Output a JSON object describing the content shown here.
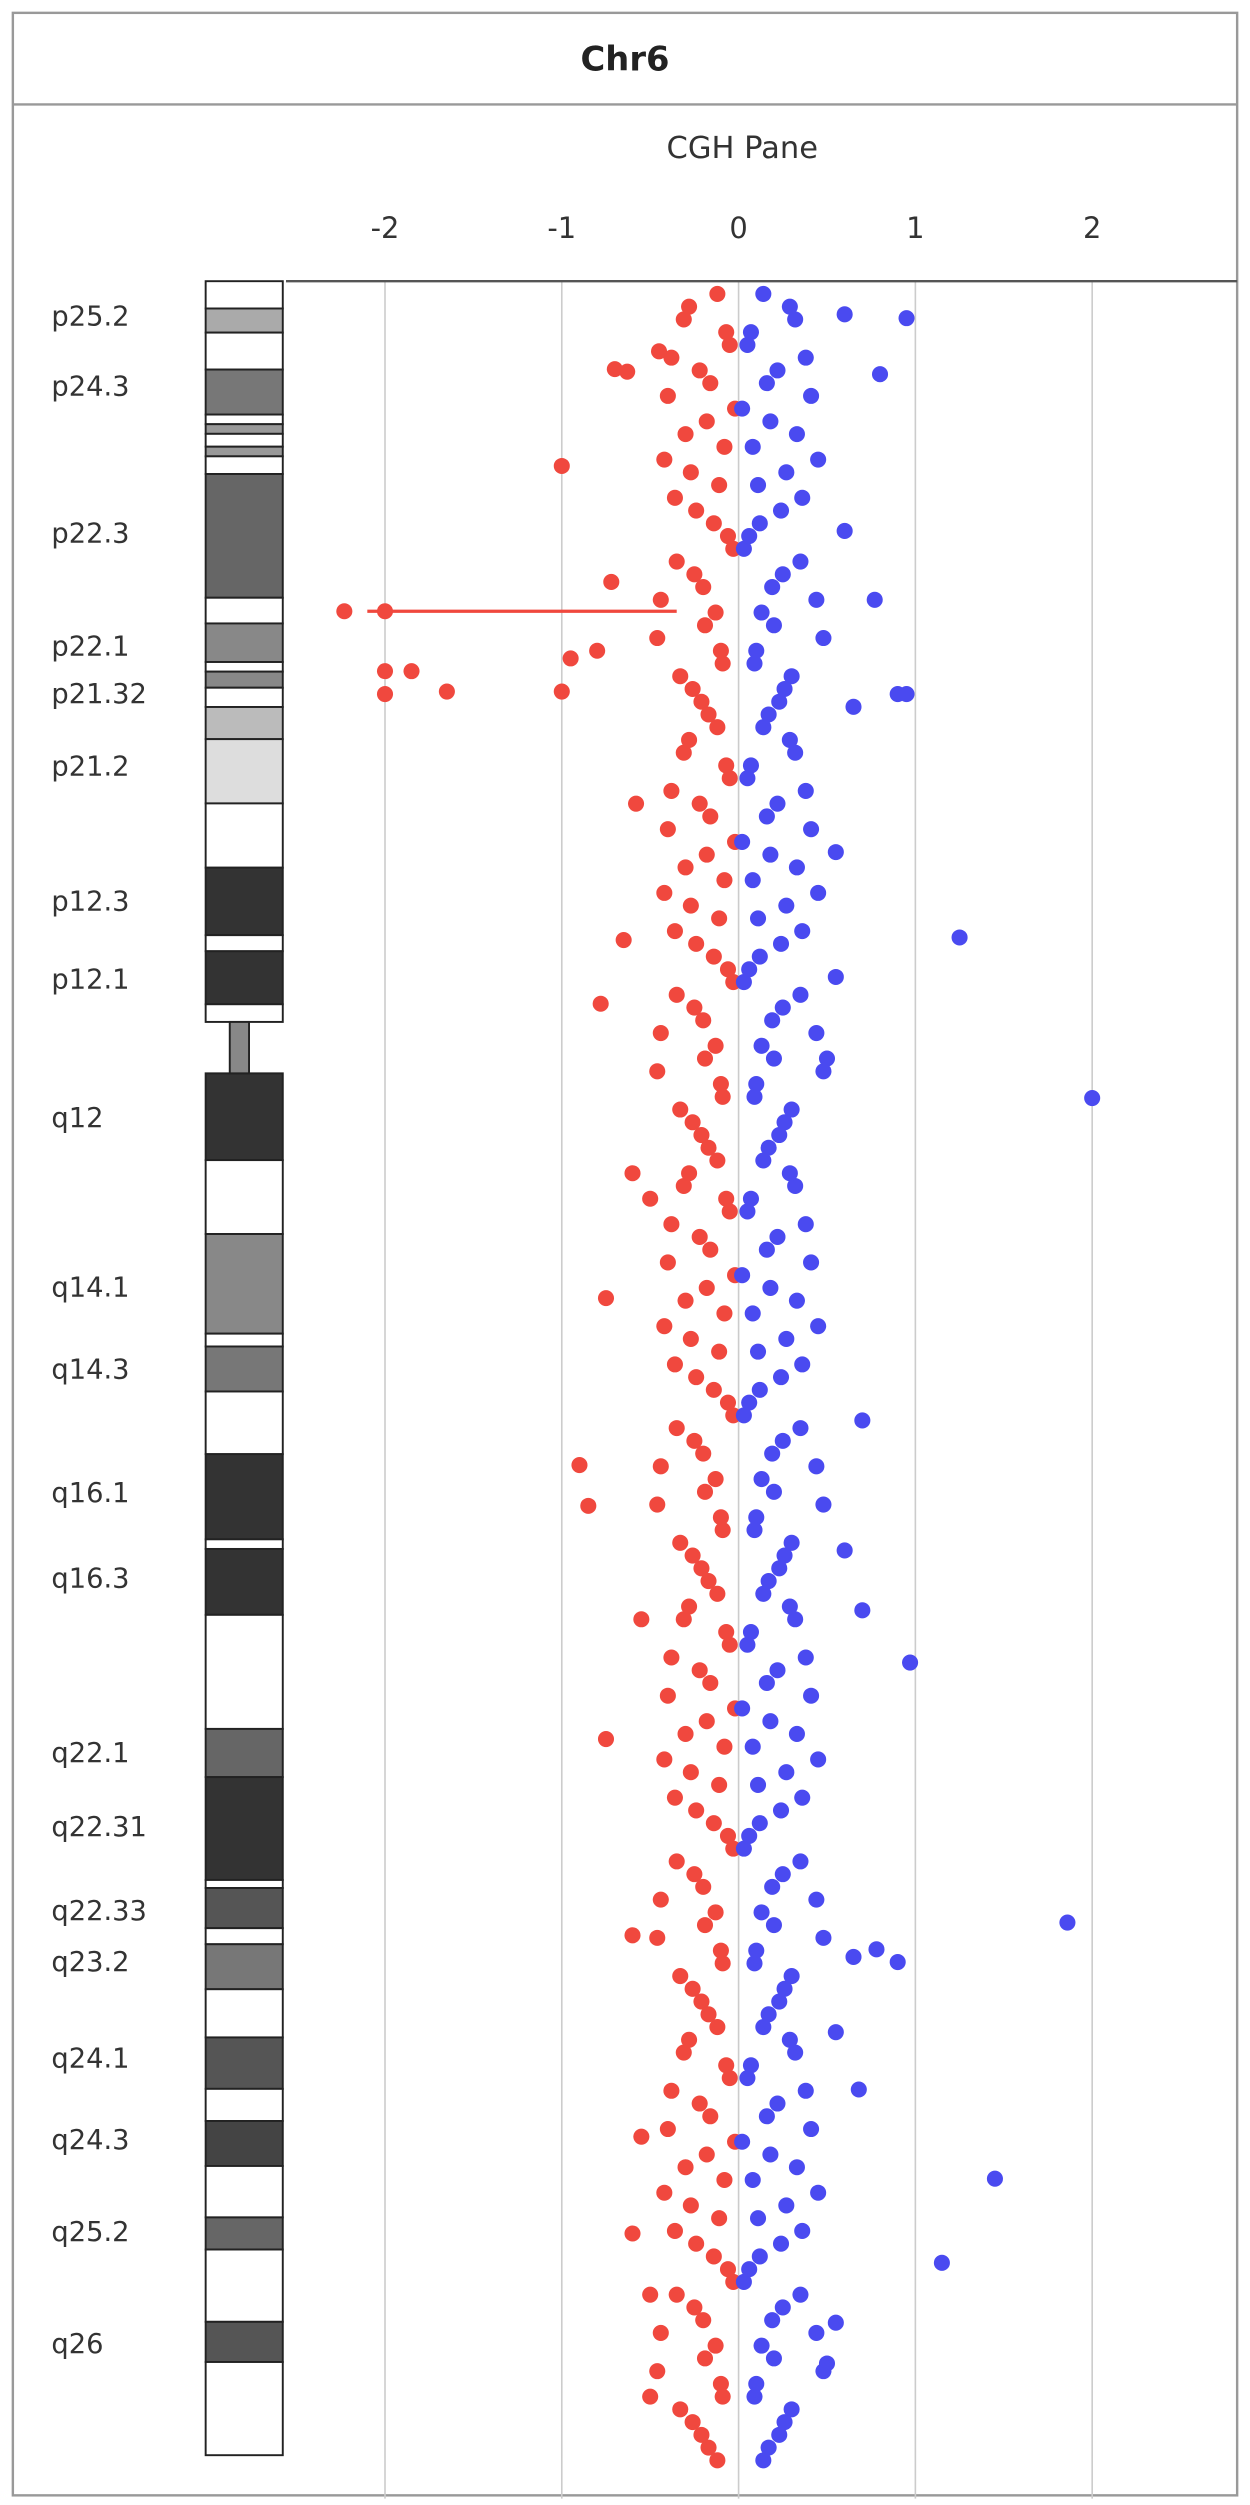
{
  "chart_data": {
    "type": "scatter",
    "title": "Chr6",
    "subtitle": "CGH Pane",
    "xlim": [
      -2.56,
      2.82
    ],
    "xticks": [
      -2,
      -1,
      0,
      1,
      2
    ],
    "ylim": [
      0,
      174
    ],
    "grid": true,
    "bands": {
      "labels": [
        "p25.2",
        "p24.3",
        "p22.3",
        "p22.1",
        "p21.32",
        "p21.2",
        "p12.3",
        "p12.1",
        "q12",
        "q14.1",
        "q14.3",
        "q16.1",
        "q16.3",
        "q22.1",
        "q22.31",
        "q22.33",
        "q23.2",
        "q24.1",
        "q24.3",
        "q25.2",
        "q26"
      ],
      "positions": [
        2.9,
        8.4,
        19.9,
        28.8,
        32.5,
        38.2,
        48.8,
        54.9,
        65.8,
        79.1,
        85.5,
        95.2,
        101.9,
        115.6,
        121.4,
        128.0,
        132.0,
        139.6,
        146.0,
        153.2,
        162.0
      ]
    },
    "segments": [
      {
        "position": 25.9,
        "from": -2.1,
        "to": -0.35,
        "color": "#f0483e"
      }
    ],
    "series": [
      {
        "color": "#f0483e",
        "positions": [
          1,
          3,
          5,
          7,
          9,
          11,
          13,
          15,
          17,
          19,
          21,
          23,
          25,
          27,
          29,
          31,
          33,
          35,
          37,
          39,
          41,
          43,
          45,
          47,
          49,
          51,
          53,
          55,
          57,
          59,
          61,
          63,
          65,
          67,
          69,
          71,
          73,
          75,
          77,
          79,
          81,
          83,
          85,
          87,
          89,
          91,
          93,
          95,
          97,
          99,
          101,
          103,
          105,
          107,
          109,
          111,
          113,
          115,
          117,
          119,
          121,
          123,
          125,
          127,
          129,
          131,
          133,
          135,
          137,
          139,
          141,
          143,
          145,
          147,
          149,
          151,
          153,
          155,
          157,
          159,
          161,
          163,
          165,
          167,
          169,
          171,
          2,
          4,
          6,
          8,
          10,
          12,
          14,
          16,
          18,
          20,
          22,
          24,
          26,
          28,
          30,
          32,
          34,
          36,
          38,
          40,
          42,
          44,
          46,
          48,
          50,
          52,
          54,
          56,
          58,
          60,
          62,
          64,
          66,
          68,
          70,
          72,
          74,
          76,
          78,
          80,
          82,
          84,
          86,
          88,
          90,
          92,
          94,
          96,
          98,
          100,
          102,
          104,
          106,
          108,
          110,
          112,
          114,
          116,
          118,
          120,
          122,
          124,
          126,
          128,
          130,
          132,
          134,
          136,
          138,
          140,
          142,
          144,
          146,
          148,
          150,
          152,
          154,
          156,
          158,
          160,
          162,
          164,
          166,
          168,
          170,
          25.9,
          25.9,
          14.5,
          6.9,
          7.1,
          23.6,
          30.6,
          32.4,
          30.6,
          32.2,
          32.2,
          29.6,
          29.0,
          51.7,
          56.7,
          79.8,
          92.9,
          96.1,
          114.4,
          129.8,
          153.2,
          145.6,
          158.0,
          5.5,
          41.0,
          70.0,
          72.0,
          105,
          166
        ],
        "values": [
          -0.12,
          -0.31,
          -0.05,
          -0.22,
          -0.4,
          -0.18,
          -0.08,
          -0.27,
          -0.36,
          -0.14,
          -0.03,
          -0.25,
          -0.44,
          -0.19,
          -0.1,
          -0.33,
          -0.21,
          -0.12,
          -0.31,
          -0.05,
          -0.22,
          -0.4,
          -0.18,
          -0.08,
          -0.27,
          -0.36,
          -0.14,
          -0.03,
          -0.25,
          -0.44,
          -0.19,
          -0.1,
          -0.33,
          -0.21,
          -0.12,
          -0.31,
          -0.05,
          -0.22,
          -0.4,
          -0.18,
          -0.08,
          -0.27,
          -0.36,
          -0.14,
          -0.03,
          -0.25,
          -0.44,
          -0.19,
          -0.1,
          -0.33,
          -0.21,
          -0.12,
          -0.31,
          -0.05,
          -0.22,
          -0.4,
          -0.18,
          -0.08,
          -0.27,
          -0.36,
          -0.14,
          -0.03,
          -0.25,
          -0.44,
          -0.19,
          -0.1,
          -0.33,
          -0.21,
          -0.12,
          -0.31,
          -0.05,
          -0.22,
          -0.4,
          -0.18,
          -0.08,
          -0.27,
          -0.36,
          -0.14,
          -0.03,
          -0.25,
          -0.44,
          -0.19,
          -0.1,
          -0.33,
          -0.21,
          -0.12,
          -0.28,
          -0.07,
          -0.38,
          -0.16,
          -0.02,
          -0.3,
          -0.42,
          -0.11,
          -0.24,
          -0.06,
          -0.35,
          -0.2,
          -0.13,
          -0.46,
          -0.09,
          -0.26,
          -0.17,
          -0.28,
          -0.07,
          -0.38,
          -0.16,
          -0.02,
          -0.3,
          -0.42,
          -0.11,
          -0.24,
          -0.06,
          -0.35,
          -0.2,
          -0.13,
          -0.46,
          -0.09,
          -0.26,
          -0.17,
          -0.28,
          -0.07,
          -0.38,
          -0.16,
          -0.02,
          -0.3,
          -0.42,
          -0.11,
          -0.24,
          -0.06,
          -0.35,
          -0.2,
          -0.13,
          -0.46,
          -0.09,
          -0.26,
          -0.17,
          -0.28,
          -0.07,
          -0.38,
          -0.16,
          -0.02,
          -0.3,
          -0.42,
          -0.11,
          -0.24,
          -0.06,
          -0.35,
          -0.2,
          -0.13,
          -0.46,
          -0.09,
          -0.26,
          -0.17,
          -0.28,
          -0.07,
          -0.38,
          -0.16,
          -0.02,
          -0.3,
          -0.42,
          -0.11,
          -0.24,
          -0.06,
          -0.35,
          -0.2,
          -0.13,
          -0.46,
          -0.09,
          -0.26,
          -0.17,
          -2.0,
          -2.23,
          -1.0,
          -0.7,
          -0.63,
          -0.72,
          -2.0,
          -2.0,
          -1.85,
          -1.65,
          -1.0,
          -0.95,
          -0.8,
          -0.65,
          -0.78,
          -0.75,
          -0.9,
          -0.85,
          -0.75,
          -0.6,
          -0.6,
          -0.55,
          -0.5,
          -0.45,
          -0.58,
          -0.6,
          -0.5,
          -0.55,
          -0.5
        ]
      },
      {
        "color": "#4a4af0",
        "positions": [
          1,
          3,
          5,
          7,
          9,
          11,
          13,
          15,
          17,
          19,
          21,
          23,
          25,
          27,
          29,
          31,
          33,
          35,
          37,
          39,
          41,
          43,
          45,
          47,
          49,
          51,
          53,
          55,
          57,
          59,
          61,
          63,
          65,
          67,
          69,
          71,
          73,
          75,
          77,
          79,
          81,
          83,
          85,
          87,
          89,
          91,
          93,
          95,
          97,
          99,
          101,
          103,
          105,
          107,
          109,
          111,
          113,
          115,
          117,
          119,
          121,
          123,
          125,
          127,
          129,
          131,
          133,
          135,
          137,
          139,
          141,
          143,
          145,
          147,
          149,
          151,
          153,
          155,
          157,
          159,
          161,
          163,
          165,
          167,
          169,
          171,
          2,
          4,
          6,
          8,
          10,
          12,
          14,
          16,
          18,
          20,
          22,
          24,
          26,
          28,
          30,
          32,
          34,
          36,
          38,
          40,
          42,
          44,
          46,
          48,
          50,
          52,
          54,
          56,
          58,
          60,
          62,
          64,
          66,
          68,
          70,
          72,
          74,
          76,
          78,
          80,
          82,
          84,
          86,
          88,
          90,
          92,
          94,
          96,
          98,
          100,
          102,
          104,
          106,
          108,
          110,
          112,
          114,
          116,
          118,
          120,
          122,
          124,
          126,
          128,
          130,
          132,
          134,
          136,
          138,
          140,
          142,
          144,
          146,
          148,
          150,
          152,
          154,
          156,
          158,
          160,
          162,
          164,
          166,
          168,
          170,
          2.9,
          2.6,
          7.3,
          19.6,
          25.0,
          32.4,
          32.4,
          33.4,
          51.5,
          54.6,
          64.1,
          89.4,
          108.4,
          104.3,
          99.6,
          128.8,
          130.9,
          131.9,
          131.5,
          137.4,
          141.9,
          148.9,
          155.5,
          160.2,
          163.4,
          44.8,
          61.0
        ],
        "values": [
          0.14,
          0.32,
          0.05,
          0.22,
          0.41,
          0.18,
          0.08,
          0.27,
          0.36,
          0.12,
          0.03,
          0.25,
          0.44,
          0.2,
          0.1,
          0.3,
          0.23,
          0.14,
          0.32,
          0.05,
          0.22,
          0.41,
          0.18,
          0.08,
          0.27,
          0.36,
          0.12,
          0.03,
          0.25,
          0.44,
          0.2,
          0.1,
          0.3,
          0.23,
          0.14,
          0.32,
          0.05,
          0.22,
          0.41,
          0.18,
          0.08,
          0.27,
          0.36,
          0.12,
          0.03,
          0.25,
          0.44,
          0.2,
          0.1,
          0.3,
          0.23,
          0.14,
          0.32,
          0.05,
          0.22,
          0.41,
          0.18,
          0.08,
          0.27,
          0.36,
          0.12,
          0.03,
          0.25,
          0.44,
          0.2,
          0.1,
          0.3,
          0.23,
          0.14,
          0.32,
          0.05,
          0.22,
          0.41,
          0.18,
          0.08,
          0.27,
          0.36,
          0.12,
          0.03,
          0.25,
          0.44,
          0.2,
          0.1,
          0.3,
          0.23,
          0.14,
          0.29,
          0.07,
          0.38,
          0.16,
          0.02,
          0.33,
          0.45,
          0.11,
          0.24,
          0.06,
          0.35,
          0.19,
          0.13,
          0.48,
          0.09,
          0.26,
          0.17,
          0.29,
          0.07,
          0.38,
          0.16,
          0.02,
          0.33,
          0.45,
          0.11,
          0.24,
          0.06,
          0.35,
          0.19,
          0.13,
          0.48,
          0.09,
          0.26,
          0.17,
          0.29,
          0.07,
          0.38,
          0.16,
          0.02,
          0.33,
          0.45,
          0.11,
          0.24,
          0.06,
          0.35,
          0.19,
          0.13,
          0.48,
          0.09,
          0.26,
          0.17,
          0.29,
          0.07,
          0.38,
          0.16,
          0.02,
          0.33,
          0.45,
          0.11,
          0.24,
          0.06,
          0.35,
          0.19,
          0.13,
          0.48,
          0.09,
          0.26,
          0.17,
          0.29,
          0.07,
          0.38,
          0.16,
          0.02,
          0.33,
          0.45,
          0.11,
          0.24,
          0.06,
          0.35,
          0.19,
          0.13,
          0.48,
          0.09,
          0.26,
          0.17,
          0.95,
          0.6,
          0.8,
          0.6,
          0.77,
          0.95,
          0.9,
          0.65,
          1.25,
          0.55,
          2.0,
          0.7,
          0.97,
          0.7,
          0.6,
          1.86,
          0.78,
          0.9,
          0.65,
          0.55,
          0.68,
          1.45,
          1.15,
          0.55,
          0.5,
          0.55,
          0.5
        ]
      }
    ]
  }
}
